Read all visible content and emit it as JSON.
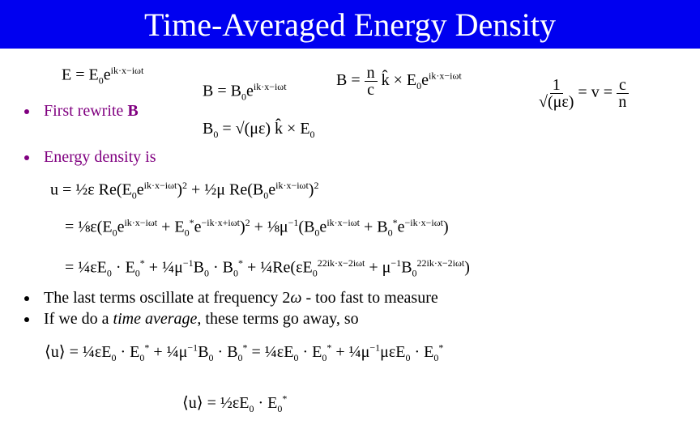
{
  "header": {
    "title": "Time-Averaged Energy Density"
  },
  "bullets": [
    [
      "First rewrite ",
      "B"
    ],
    [
      "Energy density is"
    ],
    [
      "The last terms oscillate at frequency 2",
      "ω",
      " - too fast to measure"
    ],
    [
      "If we do a ",
      "time average",
      ", these terms go away, so"
    ]
  ],
  "equations": {
    "e_field": [
      "E = E",
      "0",
      "e",
      "ik·x−iωt"
    ],
    "b_field": [
      "B = B",
      "0",
      "e",
      "ik·x−iωt"
    ],
    "b_from_e": [
      "B = ",
      "n",
      "c",
      " k̂ × E",
      "0",
      "e",
      "ik·x−iωt"
    ],
    "b_amplitude": [
      "B",
      "0",
      " = √(με) k̂ × E",
      "0"
    ],
    "speed": [
      "1",
      "√(με)",
      " = v = ",
      "c",
      "n"
    ],
    "u_line1": [
      "u = ½ε Re(E",
      "0",
      "e",
      "ik·x−iωt",
      ")",
      "2",
      " + ½μ Re(B",
      "0",
      "e",
      "ik·x−iωt",
      ")",
      "2"
    ],
    "u_line2": [
      "= ⅛ε(E",
      "0",
      "e",
      "ik·x−iωt",
      " + E",
      "0",
      "*",
      "e",
      "−ik·x+iωt",
      ")",
      "2",
      " + ⅛μ",
      "−1",
      "(B",
      "0",
      "e",
      "ik·x−iωt",
      " + B",
      "0",
      "*",
      "e",
      "−ik·x−iωt",
      ")"
    ],
    "u_line3": [
      "= ¼εE",
      "0",
      " · E",
      "0",
      "*",
      " + ¼μ",
      "−1",
      "B",
      "0",
      " · B",
      "0",
      "*",
      " + ¼Re(εE",
      "0",
      "2",
      "2ik·x−2iωt",
      " + μ",
      "−1",
      "B",
      "0",
      "2",
      "2ik·x−2iωt",
      ")"
    ],
    "avg_line1": [
      "⟨u⟩ = ¼εE",
      "0",
      " · E",
      "0",
      "*",
      " + ¼μ",
      "−1",
      "B",
      "0",
      " · B",
      "0",
      "*",
      " = ¼εE",
      "0",
      " · E",
      "0",
      "*",
      " + ¼μ",
      "−1",
      "μεE",
      "0",
      " · E",
      "0",
      "*"
    ],
    "avg_line2": [
      "⟨u⟩ = ½εE",
      "0",
      " · E",
      "0",
      "*"
    ]
  }
}
